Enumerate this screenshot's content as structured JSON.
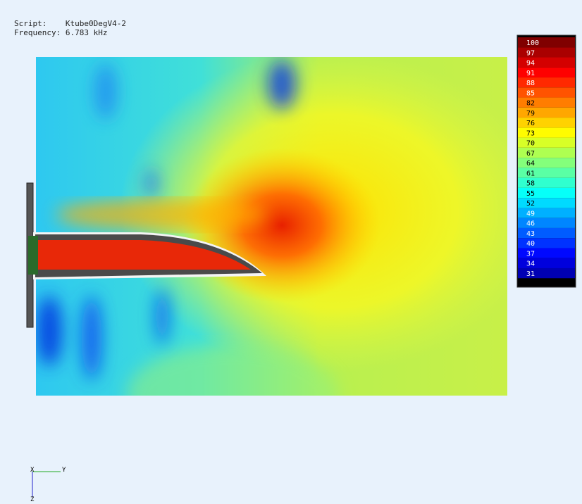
{
  "header": {
    "script_label": "Script:",
    "script": "Ktube0DegV4-2",
    "frequency_label": "Frequency:",
    "frequency": "6.783 kHz"
  },
  "colorbar": {
    "levels": [
      100,
      97,
      94,
      91,
      88,
      85,
      82,
      79,
      76,
      73,
      70,
      67,
      64,
      61,
      58,
      55,
      52,
      49,
      46,
      43,
      40,
      37,
      34,
      31
    ]
  },
  "axes": {
    "x": "X",
    "y": "Y",
    "z": "Z"
  }
}
